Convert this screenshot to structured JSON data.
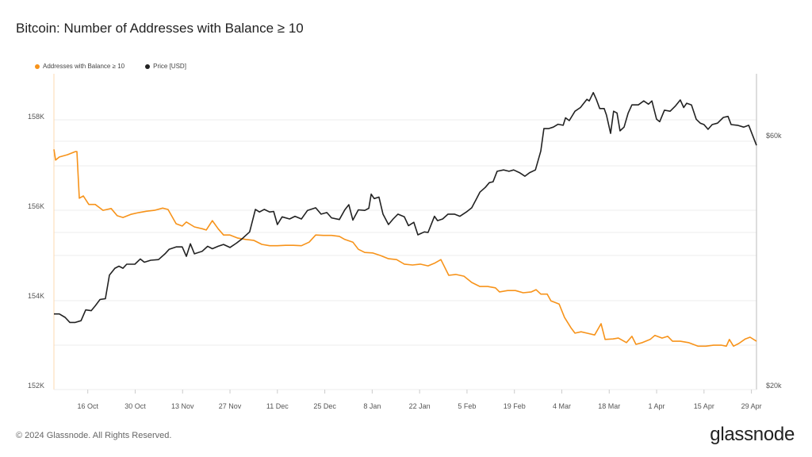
{
  "title": "Bitcoin: Number of Addresses with Balance ≥ 10",
  "footer": "© 2024 Glassnode. All Rights Reserved.",
  "logo": "glassnode",
  "colors": {
    "addresses": "#f7931a",
    "price": "#222222",
    "grid": "#eeeeee"
  },
  "chart_data": {
    "type": "line",
    "title": "Bitcoin: Number of Addresses with Balance ≥ 10",
    "x_unit": "days since 6 Oct 2023",
    "xlim": [
      0,
      207.5
    ],
    "x_ticks": [
      {
        "day": 10,
        "label": "16 Oct"
      },
      {
        "day": 24,
        "label": "30 Oct"
      },
      {
        "day": 38,
        "label": "13 Nov"
      },
      {
        "day": 52,
        "label": "27 Nov"
      },
      {
        "day": 66,
        "label": "11 Dec"
      },
      {
        "day": 80,
        "label": "25 Dec"
      },
      {
        "day": 94,
        "label": "8 Jan"
      },
      {
        "day": 108,
        "label": "22 Jan"
      },
      {
        "day": 122,
        "label": "5 Feb"
      },
      {
        "day": 136,
        "label": "19 Feb"
      },
      {
        "day": 150,
        "label": "4 Mar"
      },
      {
        "day": 164,
        "label": "18 Mar"
      },
      {
        "day": 178,
        "label": "1 Apr"
      },
      {
        "day": 192,
        "label": "15 Apr"
      },
      {
        "day": 206,
        "label": "29 Apr"
      }
    ],
    "left_axis": {
      "scale": "linear",
      "ylim": [
        152,
        158.5
      ],
      "unit": "K",
      "ticks": [
        {
          "v": 152,
          "label": "152K"
        },
        {
          "v": 154,
          "label": "154K"
        },
        {
          "v": 156,
          "label": "156K"
        },
        {
          "v": 158,
          "label": "158K"
        }
      ]
    },
    "right_axis": {
      "scale": "log",
      "ylim": [
        20,
        80
      ],
      "unit": "k USD",
      "ticks": [
        {
          "v": 20,
          "label": "$20k"
        },
        {
          "v": 60,
          "label": "$60k"
        }
      ]
    },
    "grid": true,
    "legend_position": "top-left",
    "series": [
      {
        "name": "Addresses with Balance ≥ 10",
        "axis": "left",
        "color": "#f7931a",
        "points": [
          [
            0,
            157.27
          ],
          [
            0.5,
            157.03
          ],
          [
            1.6,
            157.1
          ],
          [
            4.0,
            157.15
          ],
          [
            6.3,
            157.22
          ],
          [
            6.8,
            157.22
          ],
          [
            7.5,
            156.18
          ],
          [
            8.7,
            156.23
          ],
          [
            10.3,
            156.04
          ],
          [
            12.2,
            156.04
          ],
          [
            14.5,
            155.91
          ],
          [
            16.9,
            155.95
          ],
          [
            18.7,
            155.79
          ],
          [
            20.4,
            155.75
          ],
          [
            22.7,
            155.82
          ],
          [
            25.1,
            155.86
          ],
          [
            27.4,
            155.89
          ],
          [
            29.7,
            155.91
          ],
          [
            32.1,
            155.96
          ],
          [
            33.7,
            155.93
          ],
          [
            36.1,
            155.61
          ],
          [
            37.9,
            155.56
          ],
          [
            39.1,
            155.65
          ],
          [
            41.5,
            155.54
          ],
          [
            43.8,
            155.5
          ],
          [
            45.0,
            155.47
          ],
          [
            46.8,
            155.68
          ],
          [
            48.5,
            155.5
          ],
          [
            50.1,
            155.36
          ],
          [
            52.0,
            155.36
          ],
          [
            54.3,
            155.29
          ],
          [
            56.7,
            155.26
          ],
          [
            59.0,
            155.24
          ],
          [
            61.4,
            155.15
          ],
          [
            63.7,
            155.12
          ],
          [
            66.0,
            155.12
          ],
          [
            68.4,
            155.13
          ],
          [
            70.7,
            155.13
          ],
          [
            73.1,
            155.12
          ],
          [
            75.4,
            155.2
          ],
          [
            77.3,
            155.36
          ],
          [
            79.6,
            155.35
          ],
          [
            82.0,
            155.35
          ],
          [
            84.3,
            155.33
          ],
          [
            85.9,
            155.26
          ],
          [
            88.3,
            155.2
          ],
          [
            89.9,
            155.04
          ],
          [
            91.8,
            154.97
          ],
          [
            94.1,
            154.96
          ],
          [
            96.5,
            154.9
          ],
          [
            98.8,
            154.83
          ],
          [
            101.2,
            154.81
          ],
          [
            103.5,
            154.71
          ],
          [
            105.9,
            154.69
          ],
          [
            108.2,
            154.71
          ],
          [
            110.5,
            154.67
          ],
          [
            112.4,
            154.73
          ],
          [
            114.3,
            154.81
          ],
          [
            116.6,
            154.46
          ],
          [
            118.7,
            154.48
          ],
          [
            121.1,
            154.44
          ],
          [
            123.4,
            154.3
          ],
          [
            125.8,
            154.21
          ],
          [
            128.1,
            154.21
          ],
          [
            130.4,
            154.18
          ],
          [
            131.6,
            154.09
          ],
          [
            134.0,
            154.12
          ],
          [
            136.3,
            154.12
          ],
          [
            138.6,
            154.07
          ],
          [
            141.0,
            154.09
          ],
          [
            142.4,
            154.14
          ],
          [
            143.8,
            154.04
          ],
          [
            145.7,
            154.04
          ],
          [
            146.8,
            153.89
          ],
          [
            149.2,
            153.82
          ],
          [
            150.8,
            153.52
          ],
          [
            152.7,
            153.29
          ],
          [
            153.9,
            153.17
          ],
          [
            155.7,
            153.2
          ],
          [
            157.4,
            153.17
          ],
          [
            159.7,
            153.13
          ],
          [
            161.6,
            153.38
          ],
          [
            162.8,
            153.03
          ],
          [
            165.1,
            153.04
          ],
          [
            166.7,
            153.06
          ],
          [
            169.1,
            152.96
          ],
          [
            170.7,
            153.1
          ],
          [
            171.9,
            152.92
          ],
          [
            173.8,
            152.96
          ],
          [
            176.1,
            153.03
          ],
          [
            177.5,
            153.12
          ],
          [
            179.6,
            153.06
          ],
          [
            181.3,
            153.1
          ],
          [
            182.7,
            152.99
          ],
          [
            185.0,
            152.99
          ],
          [
            187.4,
            152.96
          ],
          [
            190.2,
            152.88
          ],
          [
            192.5,
            152.88
          ],
          [
            194.8,
            152.9
          ],
          [
            197.2,
            152.9
          ],
          [
            198.6,
            152.88
          ],
          [
            199.5,
            153.03
          ],
          [
            200.7,
            152.88
          ],
          [
            202.3,
            152.94
          ],
          [
            204.2,
            153.04
          ],
          [
            205.6,
            153.08
          ],
          [
            207.5,
            152.99
          ]
        ]
      },
      {
        "name": "Price [USD]",
        "axis": "right",
        "color": "#222222",
        "points": [
          [
            0,
            27.4
          ],
          [
            1.6,
            27.4
          ],
          [
            3.3,
            27.0
          ],
          [
            4.7,
            26.4
          ],
          [
            6.3,
            26.4
          ],
          [
            8.0,
            26.6
          ],
          [
            9.4,
            27.9
          ],
          [
            11.0,
            27.8
          ],
          [
            12.2,
            28.4
          ],
          [
            13.6,
            29.2
          ],
          [
            15.2,
            29.3
          ],
          [
            16.4,
            32.5
          ],
          [
            18.0,
            33.5
          ],
          [
            19.2,
            33.8
          ],
          [
            20.4,
            33.5
          ],
          [
            21.5,
            34.1
          ],
          [
            23.9,
            34.1
          ],
          [
            25.5,
            34.9
          ],
          [
            26.7,
            34.4
          ],
          [
            28.6,
            34.7
          ],
          [
            30.9,
            34.8
          ],
          [
            32.8,
            35.7
          ],
          [
            34.0,
            36.4
          ],
          [
            36.1,
            36.8
          ],
          [
            37.9,
            36.8
          ],
          [
            39.1,
            35.3
          ],
          [
            40.3,
            37.3
          ],
          [
            41.5,
            35.7
          ],
          [
            43.8,
            36.1
          ],
          [
            45.4,
            36.9
          ],
          [
            46.8,
            36.5
          ],
          [
            48.5,
            36.9
          ],
          [
            50.1,
            37.2
          ],
          [
            52.0,
            36.7
          ],
          [
            53.9,
            37.4
          ],
          [
            55.5,
            38.1
          ],
          [
            57.8,
            39.3
          ],
          [
            59.5,
            43.4
          ],
          [
            60.7,
            42.9
          ],
          [
            62.1,
            43.4
          ],
          [
            63.7,
            42.9
          ],
          [
            64.9,
            43.0
          ],
          [
            66.0,
            40.6
          ],
          [
            67.4,
            42.0
          ],
          [
            69.6,
            41.6
          ],
          [
            71.2,
            42.1
          ],
          [
            73.1,
            41.6
          ],
          [
            74.9,
            43.2
          ],
          [
            77.3,
            43.7
          ],
          [
            78.9,
            42.5
          ],
          [
            80.6,
            42.8
          ],
          [
            82.0,
            41.8
          ],
          [
            84.3,
            41.5
          ],
          [
            85.9,
            43.3
          ],
          [
            87.1,
            44.3
          ],
          [
            88.3,
            41.4
          ],
          [
            89.9,
            43.3
          ],
          [
            91.8,
            43.2
          ],
          [
            93.0,
            43.6
          ],
          [
            93.7,
            46.4
          ],
          [
            94.6,
            45.5
          ],
          [
            96.0,
            45.8
          ],
          [
            97.2,
            42.5
          ],
          [
            98.8,
            40.6
          ],
          [
            100.2,
            41.6
          ],
          [
            101.6,
            42.5
          ],
          [
            103.5,
            42.0
          ],
          [
            104.7,
            40.4
          ],
          [
            106.3,
            41.0
          ],
          [
            107.5,
            38.8
          ],
          [
            109.4,
            39.3
          ],
          [
            110.5,
            39.2
          ],
          [
            112.4,
            42.1
          ],
          [
            113.3,
            41.3
          ],
          [
            114.8,
            41.6
          ],
          [
            116.4,
            42.5
          ],
          [
            118.3,
            42.5
          ],
          [
            119.9,
            42.1
          ],
          [
            121.8,
            42.9
          ],
          [
            123.4,
            43.7
          ],
          [
            124.6,
            45.2
          ],
          [
            125.8,
            46.8
          ],
          [
            127.4,
            47.8
          ],
          [
            128.6,
            48.8
          ],
          [
            129.7,
            49.0
          ],
          [
            130.9,
            51.3
          ],
          [
            132.8,
            51.6
          ],
          [
            134.4,
            51.3
          ],
          [
            135.8,
            51.6
          ],
          [
            137.5,
            51.0
          ],
          [
            139.1,
            50.2
          ],
          [
            140.5,
            51.0
          ],
          [
            142.2,
            51.6
          ],
          [
            143.8,
            56.1
          ],
          [
            144.7,
            61.9
          ],
          [
            146.1,
            61.9
          ],
          [
            147.5,
            62.3
          ],
          [
            148.9,
            63.1
          ],
          [
            150.4,
            62.8
          ],
          [
            151.1,
            64.9
          ],
          [
            152.2,
            64.1
          ],
          [
            153.9,
            66.8
          ],
          [
            155.5,
            67.9
          ],
          [
            157.4,
            70.4
          ],
          [
            158.1,
            69.9
          ],
          [
            159.3,
            72.5
          ],
          [
            160.2,
            70.4
          ],
          [
            161.2,
            67.6
          ],
          [
            162.5,
            67.6
          ],
          [
            163.2,
            65.7
          ],
          [
            164.4,
            60.6
          ],
          [
            165.3,
            66.8
          ],
          [
            166.3,
            66.3
          ],
          [
            167.2,
            61.3
          ],
          [
            168.4,
            62.3
          ],
          [
            169.6,
            66.3
          ],
          [
            170.7,
            68.7
          ],
          [
            172.6,
            68.7
          ],
          [
            174.2,
            69.9
          ],
          [
            175.6,
            68.9
          ],
          [
            176.6,
            69.9
          ],
          [
            178.0,
            64.5
          ],
          [
            178.9,
            63.8
          ],
          [
            180.3,
            67.1
          ],
          [
            182.0,
            66.8
          ],
          [
            183.6,
            68.4
          ],
          [
            185.0,
            70.2
          ],
          [
            186.0,
            67.9
          ],
          [
            186.9,
            69.2
          ],
          [
            188.3,
            68.7
          ],
          [
            189.7,
            64.5
          ],
          [
            190.9,
            63.4
          ],
          [
            192.0,
            63.0
          ],
          [
            193.2,
            61.7
          ],
          [
            194.4,
            63.0
          ],
          [
            196.0,
            63.4
          ],
          [
            197.7,
            65.0
          ],
          [
            199.1,
            65.3
          ],
          [
            200.0,
            63.0
          ],
          [
            201.9,
            62.8
          ],
          [
            203.7,
            62.3
          ],
          [
            205.2,
            62.8
          ],
          [
            207.5,
            57.5
          ]
        ]
      }
    ]
  }
}
